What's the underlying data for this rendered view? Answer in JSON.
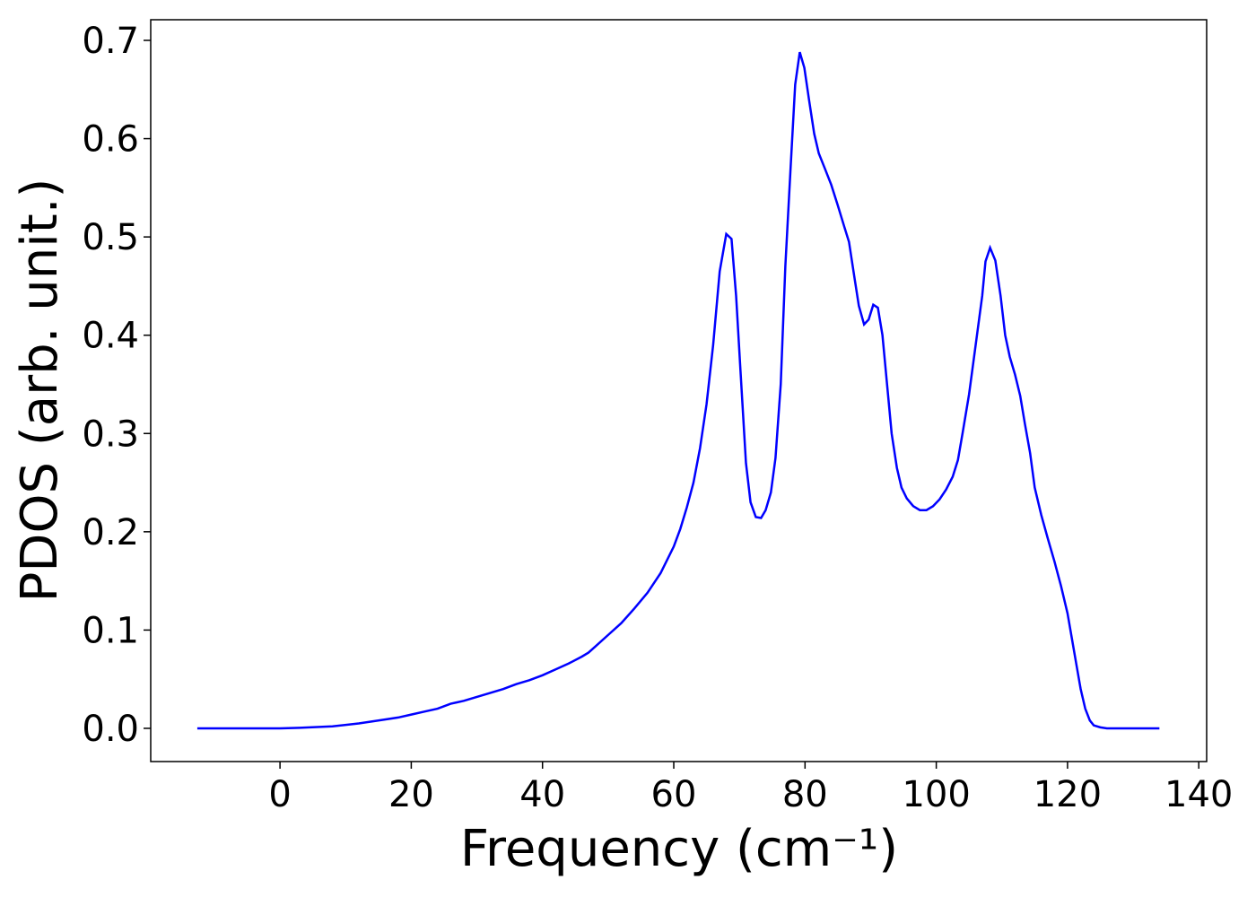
{
  "chart_data": {
    "type": "line",
    "xlabel": "Frequency (cm⁻¹)",
    "ylabel": "PDOS (arb. unit.)",
    "x": [
      -12.6,
      0,
      3,
      8,
      12,
      16,
      18,
      20,
      22,
      24,
      26,
      28,
      30,
      32,
      34,
      36,
      38,
      40,
      42,
      44,
      46,
      47,
      48,
      50,
      52,
      54,
      56,
      58,
      60,
      61,
      62,
      63,
      64,
      65,
      66,
      67,
      68,
      68.8,
      69.5,
      70.2,
      71,
      71.7,
      72.5,
      73.3,
      74,
      74.8,
      75.5,
      76.3,
      77,
      77.8,
      78.5,
      79.2,
      79.9,
      80.6,
      81.4,
      82.1,
      83,
      84,
      85,
      86,
      86.7,
      87.5,
      88.2,
      89,
      89.7,
      90.4,
      91.1,
      91.8,
      92.5,
      93.2,
      94,
      94.7,
      95.5,
      96.5,
      97.5,
      98.5,
      99.5,
      100.5,
      101.5,
      102.5,
      103.3,
      104,
      105,
      106,
      107,
      107.5,
      108.2,
      109,
      109.8,
      110.5,
      111.2,
      112,
      112.8,
      113.5,
      114.3,
      115,
      116,
      117,
      118,
      119,
      120,
      120.7,
      121.4,
      122,
      122.7,
      123.4,
      124,
      125,
      126,
      134
    ],
    "series": [
      {
        "name": "PDOS",
        "color": "#0000ff",
        "values": [
          0,
          0,
          0.0005,
          0.002,
          0.005,
          0.009,
          0.011,
          0.014,
          0.017,
          0.02,
          0.025,
          0.028,
          0.032,
          0.036,
          0.04,
          0.045,
          0.049,
          0.054,
          0.06,
          0.066,
          0.073,
          0.077,
          0.083,
          0.095,
          0.107,
          0.122,
          0.138,
          0.158,
          0.185,
          0.203,
          0.225,
          0.25,
          0.285,
          0.33,
          0.39,
          0.465,
          0.503,
          0.498,
          0.44,
          0.36,
          0.27,
          0.23,
          0.215,
          0.214,
          0.222,
          0.24,
          0.275,
          0.35,
          0.47,
          0.57,
          0.655,
          0.688,
          0.672,
          0.64,
          0.605,
          0.585,
          0.57,
          0.553,
          0.532,
          0.51,
          0.495,
          0.46,
          0.43,
          0.411,
          0.416,
          0.431,
          0.428,
          0.4,
          0.35,
          0.3,
          0.265,
          0.245,
          0.234,
          0.226,
          0.222,
          0.222,
          0.226,
          0.233,
          0.243,
          0.256,
          0.273,
          0.3,
          0.34,
          0.39,
          0.44,
          0.475,
          0.489,
          0.476,
          0.44,
          0.4,
          0.378,
          0.36,
          0.338,
          0.31,
          0.28,
          0.245,
          0.217,
          0.193,
          0.17,
          0.145,
          0.117,
          0.09,
          0.063,
          0.04,
          0.02,
          0.008,
          0.003,
          0.001,
          0,
          0
        ]
      }
    ],
    "xlim": [
      -19.7,
      141.2
    ],
    "ylim": [
      -0.0338,
      0.721
    ],
    "xticks": [
      0,
      20,
      40,
      60,
      80,
      100,
      120,
      140
    ],
    "yticks": [
      {
        "value": 0,
        "label": "0.0"
      },
      0.1,
      0.2,
      0.3,
      0.4,
      0.5,
      0.6,
      0.7
    ]
  }
}
